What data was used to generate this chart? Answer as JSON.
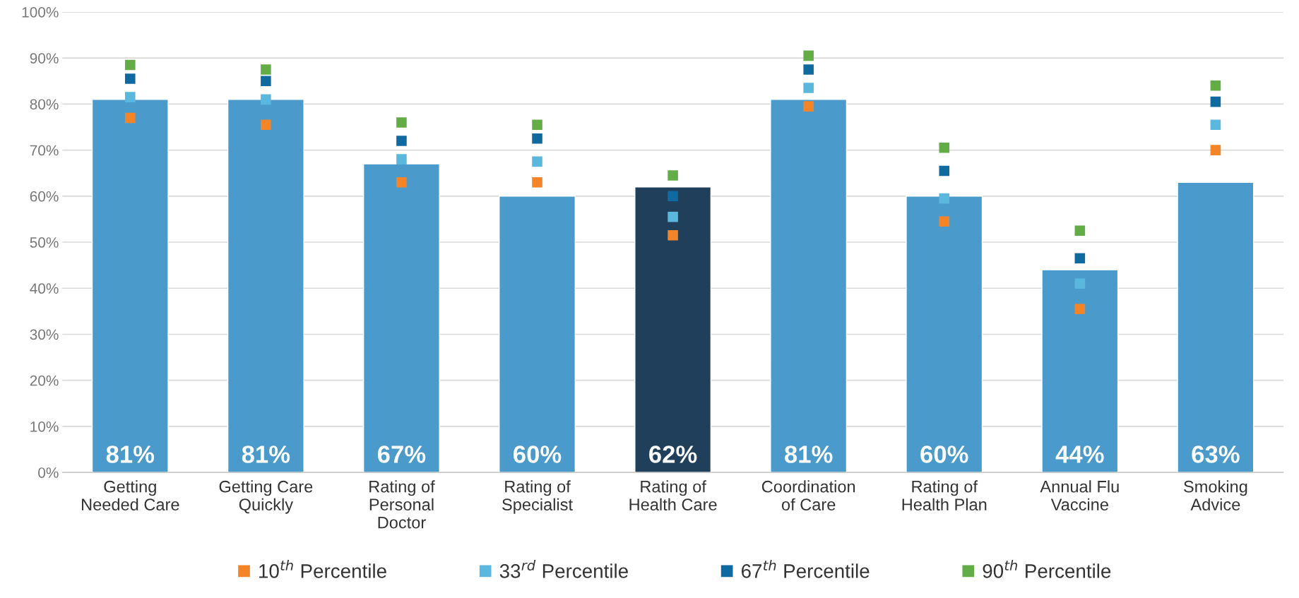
{
  "chart_data": {
    "type": "bar",
    "categories": [
      "Getting\nNeeded Care",
      "Getting Care\nQuickly",
      "Rating of\nPersonal\nDoctor",
      "Rating of\nSpecialist",
      "Rating of\nHealth Care",
      "Coordination\nof Care",
      "Rating of\nHealth Plan",
      "Annual Flu\nVaccine",
      "Smoking\nAdvice"
    ],
    "values": [
      81,
      81,
      67,
      60,
      62,
      81,
      60,
      44,
      63
    ],
    "value_labels": [
      "81%",
      "81%",
      "67%",
      "60%",
      "62%",
      "81%",
      "60%",
      "44%",
      "63%"
    ],
    "colors": [
      "#4a9bcb",
      "#4a9bcb",
      "#4a9bcb",
      "#4a9bcb",
      "#203f5a",
      "#4a9bcb",
      "#4a9bcb",
      "#4a9bcb",
      "#4a9bcb"
    ],
    "series": [
      {
        "type": "scatter",
        "name": "10$^{th}$ Percentile",
        "color": "#f58426",
        "values": [
          77,
          75.5,
          63,
          63,
          51.5,
          79.5,
          54.5,
          35.5,
          70
        ]
      },
      {
        "type": "scatter",
        "name": "33$^{rd}$ Percentile",
        "color": "#5ab8de",
        "values": [
          81.5,
          81,
          68,
          67.5,
          55.5,
          83.5,
          59.5,
          41,
          75.5
        ]
      },
      {
        "type": "scatter",
        "name": "67$^{th}$ Percentile",
        "color": "#0f6aa0",
        "values": [
          85.5,
          85,
          72,
          72.5,
          60,
          87.5,
          65.5,
          46.5,
          80.5
        ]
      },
      {
        "type": "scatter",
        "name": "90$^{th}$ Percentile",
        "color": "#62ad45",
        "values": [
          88.5,
          87.5,
          76,
          75.5,
          64.5,
          90.5,
          70.5,
          52.5,
          84
        ]
      }
    ],
    "ylim": [
      0,
      100
    ],
    "yticks": [
      {
        "value": 0,
        "label": "0%"
      },
      {
        "value": 10,
        "label": "10%"
      },
      {
        "value": 20,
        "label": "20%"
      },
      {
        "value": 30,
        "label": "30%"
      },
      {
        "value": 40,
        "label": "40%"
      },
      {
        "value": 50,
        "label": "50%"
      },
      {
        "value": 60,
        "label": "60%"
      },
      {
        "value": 70,
        "label": "70%"
      },
      {
        "value": 80,
        "label": "80%"
      },
      {
        "value": 90,
        "label": "90%"
      },
      {
        "value": 100,
        "label": "100%"
      }
    ],
    "grid": "y",
    "marker": "square",
    "legend": "bottom"
  }
}
